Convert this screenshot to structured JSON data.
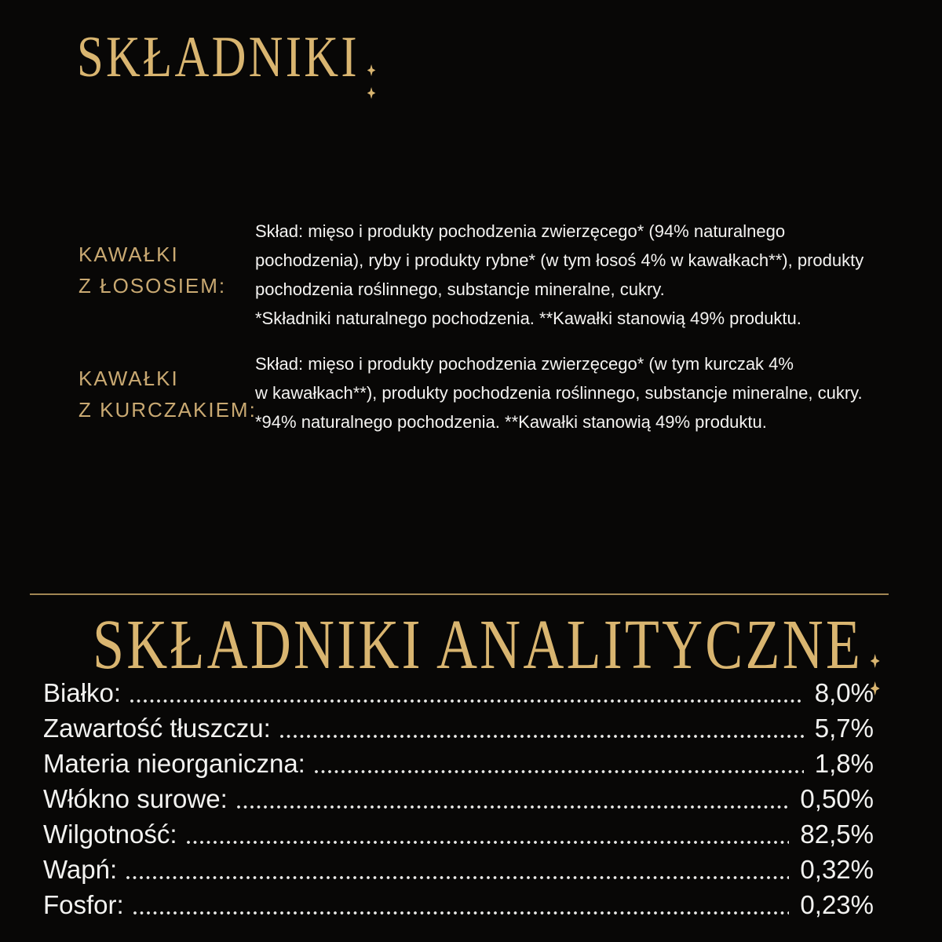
{
  "page": {
    "background_color": "#080706",
    "accent_gold": "#D9B570",
    "label_gold": "#C9A972",
    "divider_gold": "#A18653",
    "text_white": "#F4F3F1"
  },
  "ingredients_section": {
    "heading": "SKŁADNIKI:",
    "items": [
      {
        "variant_lines": [
          "KAWAŁKI",
          "Z ŁOSOSIEM:"
        ],
        "composition_lines": [
          "Skład: mięso i produkty pochodzenia zwierzęcego* (94% naturalnego",
          "pochodzenia), ryby i produkty rybne* (w tym łosoś 4% w kawałkach**), produkty",
          "pochodzenia roślinnego, substancje mineralne, cukry.",
          "*Składniki naturalnego pochodzenia. **Kawałki stanowią 49% produktu."
        ]
      },
      {
        "variant_lines": [
          "KAWAŁKI",
          "Z KURCZAKIEM:"
        ],
        "composition_lines": [
          "Skład: mięso i produkty pochodzenia zwierzęcego* (w tym kurczak 4%",
          "w kawałkach**), produkty pochodzenia roślinnego, substancje mineralne, cukry.",
          "*94% naturalnego pochodzenia. **Kawałki stanowią 49% produktu."
        ]
      }
    ]
  },
  "analytical_section": {
    "heading": "SKŁADNIKI ANALITYCZNE:",
    "rows": [
      {
        "label": "Białko:",
        "value": "8,0%"
      },
      {
        "label": "Zawartość tłuszczu:",
        "value": "5,7%"
      },
      {
        "label": "Materia nieorganiczna:",
        "value": "1,8%"
      },
      {
        "label": "Włókno surowe:",
        "value": "0,50%"
      },
      {
        "label": "Wilgotność:",
        "value": "82,5%"
      },
      {
        "label": "Wapń:",
        "value": "0,32%"
      },
      {
        "label": "Fosfor:",
        "value": "0,23%"
      }
    ]
  }
}
